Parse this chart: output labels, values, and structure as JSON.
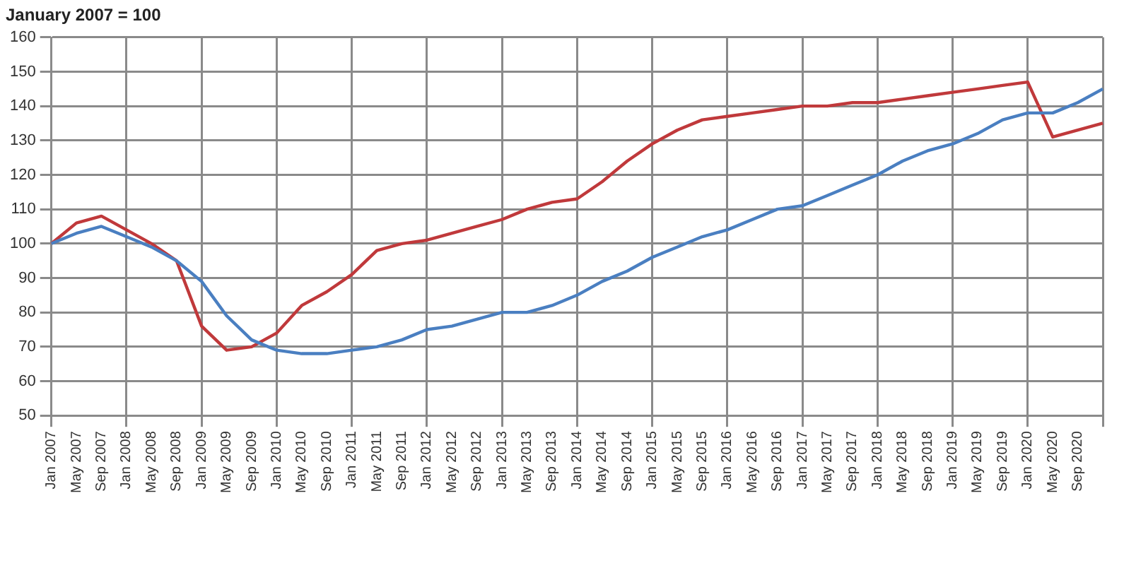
{
  "chart_data": {
    "type": "line",
    "title": "January 2007 = 100",
    "categories": [
      "Jan 2007",
      "May 2007",
      "Sep 2007",
      "Jan 2008",
      "May 2008",
      "Sep 2008",
      "Jan 2009",
      "May 2009",
      "Sep 2009",
      "Jan 2010",
      "May 2010",
      "Sep 2010",
      "Jan 2011",
      "May 2011",
      "Sep 2011",
      "Jan 2012",
      "May 2012",
      "Sep 2012",
      "Jan 2013",
      "May 2013",
      "Sep 2013",
      "Jan 2014",
      "May 2014",
      "Sep 2014",
      "Jan 2015",
      "May 2015",
      "Sep 2015",
      "Jan 2016",
      "May 2016",
      "Sep 2016",
      "Jan 2017",
      "May 2017",
      "Sep 2017",
      "Jan 2018",
      "May 2018",
      "Sep 2018",
      "Jan 2019",
      "May 2019",
      "Sep 2019",
      "Jan 2020",
      "May 2020",
      "Sep 2020",
      null
    ],
    "series": [
      {
        "color": "#4a7fc1",
        "values": [
          100,
          103,
          105,
          102,
          99,
          95,
          89,
          79,
          72,
          69,
          68,
          68,
          69,
          70,
          72,
          75,
          76,
          78,
          80,
          80,
          82,
          85,
          89,
          92,
          96,
          99,
          102,
          104,
          107,
          110,
          111,
          114,
          117,
          120,
          124,
          127,
          129,
          132,
          136,
          138,
          138,
          141,
          145
        ]
      },
      {
        "color": "#c0393b",
        "values": [
          100,
          106,
          108,
          104,
          100,
          95,
          76,
          69,
          70,
          74,
          82,
          86,
          91,
          98,
          100,
          101,
          103,
          105,
          107,
          110,
          112,
          113,
          118,
          124,
          129,
          133,
          136,
          137,
          138,
          139,
          140,
          140,
          141,
          141,
          142,
          143,
          144,
          145,
          146,
          147,
          131,
          133,
          135
        ]
      }
    ],
    "ylim": [
      50,
      160
    ],
    "yticks": [
      50,
      60,
      70,
      80,
      90,
      100,
      110,
      120,
      130,
      140,
      150,
      160
    ],
    "grid": true,
    "marker": "none",
    "line_style": "solid"
  }
}
